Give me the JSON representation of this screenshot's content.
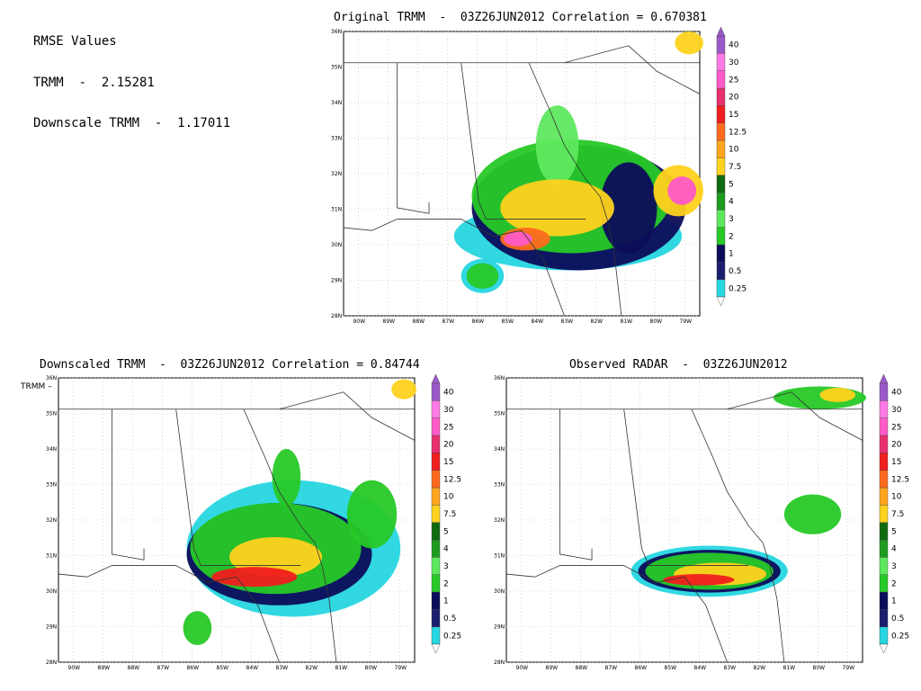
{
  "rmse": {
    "heading": "RMSE Values",
    "trmm": "TRMM  -  2.15281",
    "downscale": "Downscale TRMM  -  1.17011"
  },
  "maps": [
    {
      "id": "original",
      "title": "Original TRMM  -  03Z26JUN2012 Correlation = 0.670381",
      "side_label": ""
    },
    {
      "id": "downscaled",
      "title": "Downscaled TRMM  -  03Z26JUN2012 Correlation = 0.84744",
      "side_label": "TRMM"
    },
    {
      "id": "radar",
      "title": "Observed RADAR  -  03Z26JUN2012",
      "side_label": ""
    }
  ],
  "axes": {
    "lat_labels": [
      "36N",
      "35N",
      "34N",
      "33N",
      "32N",
      "31N",
      "30N",
      "29N",
      "28N"
    ],
    "lon_labels": [
      "90W",
      "89W",
      "88W",
      "87W",
      "86W",
      "85W",
      "84W",
      "83W",
      "82W",
      "81W",
      "80W",
      "79W"
    ]
  },
  "colorbar": {
    "levels": [
      "0.25",
      "0.5",
      "1",
      "2",
      "3",
      "4",
      "5",
      "7.5",
      "10",
      "12.5",
      "15",
      "20",
      "25",
      "30",
      "40"
    ],
    "colors": [
      "#26d6e0",
      "#1b1f6e",
      "#0c0c5a",
      "#27c927",
      "#5ee85e",
      "#1f9c1f",
      "#0f6b0f",
      "#ffd21e",
      "#ffa51e",
      "#ff6a1e",
      "#f01e1e",
      "#e8306e",
      "#ff5ac8",
      "#ff7ae6",
      "#9b59c8"
    ]
  }
}
